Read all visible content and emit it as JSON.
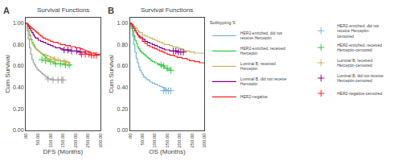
{
  "chart_data": [
    {
      "type": "line",
      "title": "Survival Functions",
      "xlabel": "DFS (Months)",
      "ylabel": "Cum Survival",
      "annotations": [
        {
          "text": "A"
        }
      ],
      "xlim": [
        0,
        300
      ],
      "ylim": [
        0.0,
        1.05
      ],
      "xticks": [
        {
          "value": 0,
          "label": ".00"
        },
        {
          "value": 50,
          "label": "50.00"
        },
        {
          "value": 100,
          "label": "100.00"
        },
        {
          "value": 150,
          "label": "150.00"
        },
        {
          "value": 200,
          "label": "200.00"
        },
        {
          "value": 250,
          "label": "250.00"
        },
        {
          "value": 300,
          "label": "300.00"
        }
      ],
      "yticks": [
        {
          "value": 0.0,
          "label": "0.00"
        },
        {
          "value": 0.2,
          "label": "0.20"
        },
        {
          "value": 0.4,
          "label": "0.40"
        },
        {
          "value": 0.6,
          "label": "0.60"
        },
        {
          "value": 0.8,
          "label": "0.80"
        },
        {
          "value": 1.0,
          "label": "1.00"
        }
      ],
      "grid": false,
      "series": [
        {
          "name": "HER2-enriched, did not\nreceive Herceptin",
          "color": "#A0A0A0",
          "type": "line",
          "line_style": "step",
          "x": [
            0,
            5,
            10,
            15,
            20,
            25,
            30,
            35,
            40,
            45,
            50,
            55,
            60,
            65,
            70,
            75,
            80,
            85,
            90,
            100,
            110,
            120,
            130,
            140,
            150
          ],
          "values": [
            1.0,
            0.93,
            0.85,
            0.77,
            0.71,
            0.66,
            0.63,
            0.61,
            0.59,
            0.57,
            0.56,
            0.55,
            0.54,
            0.53,
            0.52,
            0.51,
            0.5,
            0.49,
            0.48,
            0.48,
            0.47,
            0.47,
            0.47,
            0.47,
            0.47
          ]
        },
        {
          "name": "HER2-enriched, received\nHerceptin",
          "color": "#2ECC40",
          "type": "line",
          "line_style": "step",
          "x": [
            0,
            5,
            10,
            15,
            20,
            25,
            30,
            35,
            40,
            45,
            50,
            55,
            60,
            65,
            70,
            75,
            80,
            85,
            90,
            95,
            100,
            110,
            120,
            130,
            140,
            150,
            160,
            170,
            180
          ],
          "values": [
            1.0,
            0.97,
            0.93,
            0.89,
            0.85,
            0.82,
            0.8,
            0.78,
            0.76,
            0.75,
            0.74,
            0.73,
            0.72,
            0.71,
            0.7,
            0.69,
            0.68,
            0.67,
            0.66,
            0.65,
            0.64,
            0.63,
            0.62,
            0.62,
            0.62,
            0.62,
            0.61,
            0.61,
            0.6
          ]
        },
        {
          "name": "Luminal B, received\nHerceptin",
          "color": "#C8B860",
          "type": "line",
          "line_style": "step",
          "x": [
            0,
            5,
            10,
            15,
            20,
            25,
            30,
            35,
            40,
            45,
            50,
            55,
            60,
            65,
            70,
            80,
            90,
            100,
            110,
            120,
            130,
            140,
            150,
            160,
            170,
            180
          ],
          "values": [
            1.0,
            0.97,
            0.93,
            0.88,
            0.84,
            0.81,
            0.79,
            0.77,
            0.76,
            0.75,
            0.74,
            0.73,
            0.72,
            0.71,
            0.71,
            0.7,
            0.69,
            0.68,
            0.67,
            0.66,
            0.66,
            0.65,
            0.65,
            0.64,
            0.63,
            0.62
          ]
        },
        {
          "name": "Luminal B, did not receive\nHerceptin",
          "color": "#8B008B",
          "type": "line",
          "line_style": "step",
          "x": [
            0,
            5,
            10,
            15,
            20,
            25,
            30,
            35,
            40,
            50,
            60,
            70,
            80,
            90,
            100,
            110,
            120,
            130,
            140,
            150,
            160,
            170,
            180,
            190,
            200,
            210,
            220,
            230,
            240,
            250
          ],
          "values": [
            1.0,
            0.99,
            0.97,
            0.95,
            0.93,
            0.91,
            0.89,
            0.87,
            0.86,
            0.84,
            0.83,
            0.82,
            0.81,
            0.8,
            0.79,
            0.78,
            0.77,
            0.77,
            0.76,
            0.75,
            0.75,
            0.75,
            0.74,
            0.74,
            0.74,
            0.73,
            0.73,
            0.73,
            0.72,
            0.72
          ]
        },
        {
          "name": "HER2-negative",
          "color": "#FF2020",
          "type": "line",
          "line_style": "step",
          "x": [
            0,
            5,
            10,
            15,
            20,
            25,
            30,
            35,
            40,
            45,
            50,
            55,
            60,
            65,
            70,
            80,
            90,
            100,
            110,
            120,
            130,
            140,
            150,
            160,
            170,
            180,
            190,
            200,
            210,
            220,
            230,
            240,
            250,
            260,
            270,
            280,
            290,
            300
          ],
          "values": [
            1.0,
            0.99,
            0.98,
            0.97,
            0.96,
            0.95,
            0.94,
            0.93,
            0.92,
            0.91,
            0.9,
            0.89,
            0.88,
            0.87,
            0.86,
            0.85,
            0.84,
            0.83,
            0.82,
            0.82,
            0.81,
            0.8,
            0.8,
            0.79,
            0.79,
            0.78,
            0.78,
            0.77,
            0.77,
            0.76,
            0.75,
            0.74,
            0.73,
            0.72,
            0.72,
            0.71,
            0.71,
            0.7
          ]
        },
        {
          "name": "HER2-enriched, did not\nreceive Herceptin-\ncensored",
          "color": "#A0A0A0",
          "type": "scatter",
          "marker": "+",
          "x": [
            90,
            110,
            130,
            145,
            150
          ],
          "values": [
            0.48,
            0.47,
            0.47,
            0.47,
            0.47
          ]
        },
        {
          "name": "HER2-enriched, received\nHerceptin-censored",
          "color": "#2ECC40",
          "type": "scatter",
          "marker": "+",
          "x": [
            65,
            80,
            100,
            120,
            140,
            160,
            175
          ],
          "values": [
            0.66,
            0.65,
            0.64,
            0.62,
            0.62,
            0.61,
            0.61
          ]
        },
        {
          "name": "Luminal B, received\nHerceptin-censored",
          "color": "#C8B860",
          "type": "scatter",
          "marker": "+",
          "x": [
            85,
            100,
            115,
            130,
            155,
            165
          ],
          "values": [
            0.67,
            0.66,
            0.66,
            0.65,
            0.64,
            0.63
          ]
        },
        {
          "name": "Luminal B, did not receive\nHerceptin-censored",
          "color": "#8B008B",
          "type": "scatter",
          "marker": "+",
          "x": [
            155,
            170,
            185,
            205,
            220
          ],
          "values": [
            0.75,
            0.75,
            0.74,
            0.74,
            0.73
          ]
        },
        {
          "name": "HER2-negative-censored",
          "color": "#FF2020",
          "type": "scatter",
          "marker": "+",
          "x": [
            225,
            240,
            255,
            265,
            275,
            285
          ],
          "values": [
            0.71,
            0.71,
            0.71,
            0.7,
            0.7,
            0.7
          ]
        }
      ]
    },
    {
      "type": "line",
      "title": "Survival Functions",
      "subtitle": "Subtyping 5",
      "xlabel": "OS (Months)",
      "ylabel": "Cum Survival",
      "annotations": [
        {
          "text": "B"
        }
      ],
      "legend": "right",
      "xlim": [
        0,
        300
      ],
      "ylim": [
        0.0,
        1.05
      ],
      "xticks": [
        {
          "value": 0,
          "label": ".00"
        },
        {
          "value": 50,
          "label": "50.00"
        },
        {
          "value": 100,
          "label": "100.00"
        },
        {
          "value": 150,
          "label": "150.00"
        },
        {
          "value": 200,
          "label": "200.00"
        },
        {
          "value": 250,
          "label": "250.00"
        },
        {
          "value": 300,
          "label": "300.00"
        }
      ],
      "yticks": [
        {
          "value": 0.0,
          "label": "0.00"
        },
        {
          "value": 0.2,
          "label": "0.20"
        },
        {
          "value": 0.4,
          "label": "0.40"
        },
        {
          "value": 0.6,
          "label": "0.60"
        },
        {
          "value": 0.8,
          "label": "0.80"
        },
        {
          "value": 1.0,
          "label": "1.00"
        }
      ],
      "grid": false,
      "series": [
        {
          "name": "HER2-enriched, did not\nreceive Herceptin",
          "color": "#7EB3D8",
          "type": "line",
          "line_style": "step",
          "x": [
            0,
            5,
            10,
            15,
            20,
            25,
            30,
            35,
            40,
            45,
            50,
            55,
            60,
            65,
            70,
            80,
            90,
            100,
            110,
            120,
            130,
            140,
            150,
            160
          ],
          "values": [
            1.0,
            0.95,
            0.88,
            0.8,
            0.73,
            0.67,
            0.63,
            0.59,
            0.56,
            0.54,
            0.52,
            0.5,
            0.49,
            0.48,
            0.47,
            0.45,
            0.44,
            0.43,
            0.42,
            0.41,
            0.4,
            0.38,
            0.37,
            0.37
          ]
        },
        {
          "name": "HER2-enriched, received\nHerceptin",
          "color": "#2ECC40",
          "type": "line",
          "line_style": "step",
          "x": [
            0,
            5,
            10,
            15,
            20,
            25,
            30,
            35,
            40,
            45,
            50,
            55,
            60,
            65,
            70,
            75,
            80,
            85,
            90,
            100,
            110,
            120,
            130,
            140,
            150,
            160,
            170
          ],
          "values": [
            1.0,
            0.97,
            0.93,
            0.88,
            0.84,
            0.81,
            0.78,
            0.76,
            0.74,
            0.73,
            0.72,
            0.71,
            0.7,
            0.69,
            0.68,
            0.67,
            0.66,
            0.65,
            0.64,
            0.63,
            0.62,
            0.61,
            0.6,
            0.58,
            0.57,
            0.56,
            0.56
          ]
        },
        {
          "name": "Luminal B, received\nHerceptin",
          "color": "#C8B860",
          "type": "line",
          "line_style": "step",
          "x": [
            0,
            5,
            10,
            15,
            20,
            25,
            30,
            35,
            40,
            50,
            60,
            70,
            80,
            90,
            100,
            110,
            120,
            130,
            140,
            150,
            160,
            170,
            180,
            190,
            200,
            210,
            220,
            230,
            240,
            250,
            260,
            270,
            280,
            290,
            300
          ],
          "values": [
            1.0,
            0.99,
            0.98,
            0.97,
            0.96,
            0.95,
            0.93,
            0.92,
            0.91,
            0.89,
            0.88,
            0.87,
            0.86,
            0.85,
            0.84,
            0.83,
            0.82,
            0.81,
            0.8,
            0.8,
            0.79,
            0.78,
            0.78,
            0.77,
            0.76,
            0.75,
            0.74,
            0.74,
            0.73,
            0.73,
            0.72,
            0.72,
            0.72,
            0.72,
            0.72
          ]
        },
        {
          "name": "Luminal B, did not receive\nHerceptin",
          "color": "#8B008B",
          "type": "line",
          "line_style": "step",
          "x": [
            0,
            5,
            10,
            15,
            20,
            25,
            30,
            35,
            40,
            50,
            60,
            70,
            80,
            90,
            100,
            110,
            120,
            130,
            140,
            150,
            160,
            170,
            180,
            190,
            200
          ],
          "values": [
            1.0,
            0.99,
            0.97,
            0.95,
            0.93,
            0.91,
            0.89,
            0.88,
            0.87,
            0.85,
            0.83,
            0.82,
            0.81,
            0.8,
            0.79,
            0.78,
            0.77,
            0.76,
            0.75,
            0.75,
            0.74,
            0.74,
            0.74,
            0.73,
            0.73
          ]
        },
        {
          "name": "HER2-negative",
          "color": "#FF2020",
          "type": "line",
          "line_style": "step",
          "x": [
            0,
            5,
            10,
            15,
            20,
            25,
            30,
            35,
            40,
            50,
            60,
            70,
            80,
            90,
            100,
            110,
            120,
            130,
            140,
            150,
            160,
            170,
            180,
            190,
            200,
            210,
            220,
            230,
            240,
            250,
            260,
            270,
            280,
            290,
            300
          ],
          "values": [
            1.0,
            0.99,
            0.97,
            0.95,
            0.93,
            0.91,
            0.89,
            0.87,
            0.86,
            0.83,
            0.81,
            0.79,
            0.78,
            0.77,
            0.76,
            0.75,
            0.74,
            0.73,
            0.72,
            0.71,
            0.7,
            0.7,
            0.69,
            0.68,
            0.68,
            0.67,
            0.67,
            0.66,
            0.65,
            0.65,
            0.64,
            0.64,
            0.63,
            0.63,
            0.62
          ]
        },
        {
          "name": "HER2-enriched, did not\nreceive Herceptin-\ncensored",
          "color": "#7EB3D8",
          "type": "scatter",
          "marker": "+",
          "x": [
            135,
            145,
            155,
            165
          ],
          "values": [
            0.37,
            0.37,
            0.37,
            0.37
          ]
        },
        {
          "name": "HER2-enriched, received\nHerceptin-censored",
          "color": "#2ECC40",
          "type": "scatter",
          "marker": "+",
          "x": [
            125,
            135,
            150,
            165
          ],
          "values": [
            0.61,
            0.6,
            0.58,
            0.56
          ]
        },
        {
          "name": "Luminal B, received\nHerceptin-censored",
          "color": "#C8B860",
          "type": "scatter",
          "marker": "+",
          "x": [],
          "values": []
        },
        {
          "name": "Luminal B, did not receive\nHerceptin-censored",
          "color": "#8B008B",
          "type": "scatter",
          "marker": "+",
          "x": [
            175,
            185,
            195,
            205,
            215
          ],
          "values": [
            0.74,
            0.74,
            0.73,
            0.73,
            0.73
          ]
        },
        {
          "name": "HER2-negative-censored",
          "color": "#FF2020",
          "type": "scatter",
          "marker": "+",
          "x": [],
          "values": []
        }
      ]
    }
  ]
}
